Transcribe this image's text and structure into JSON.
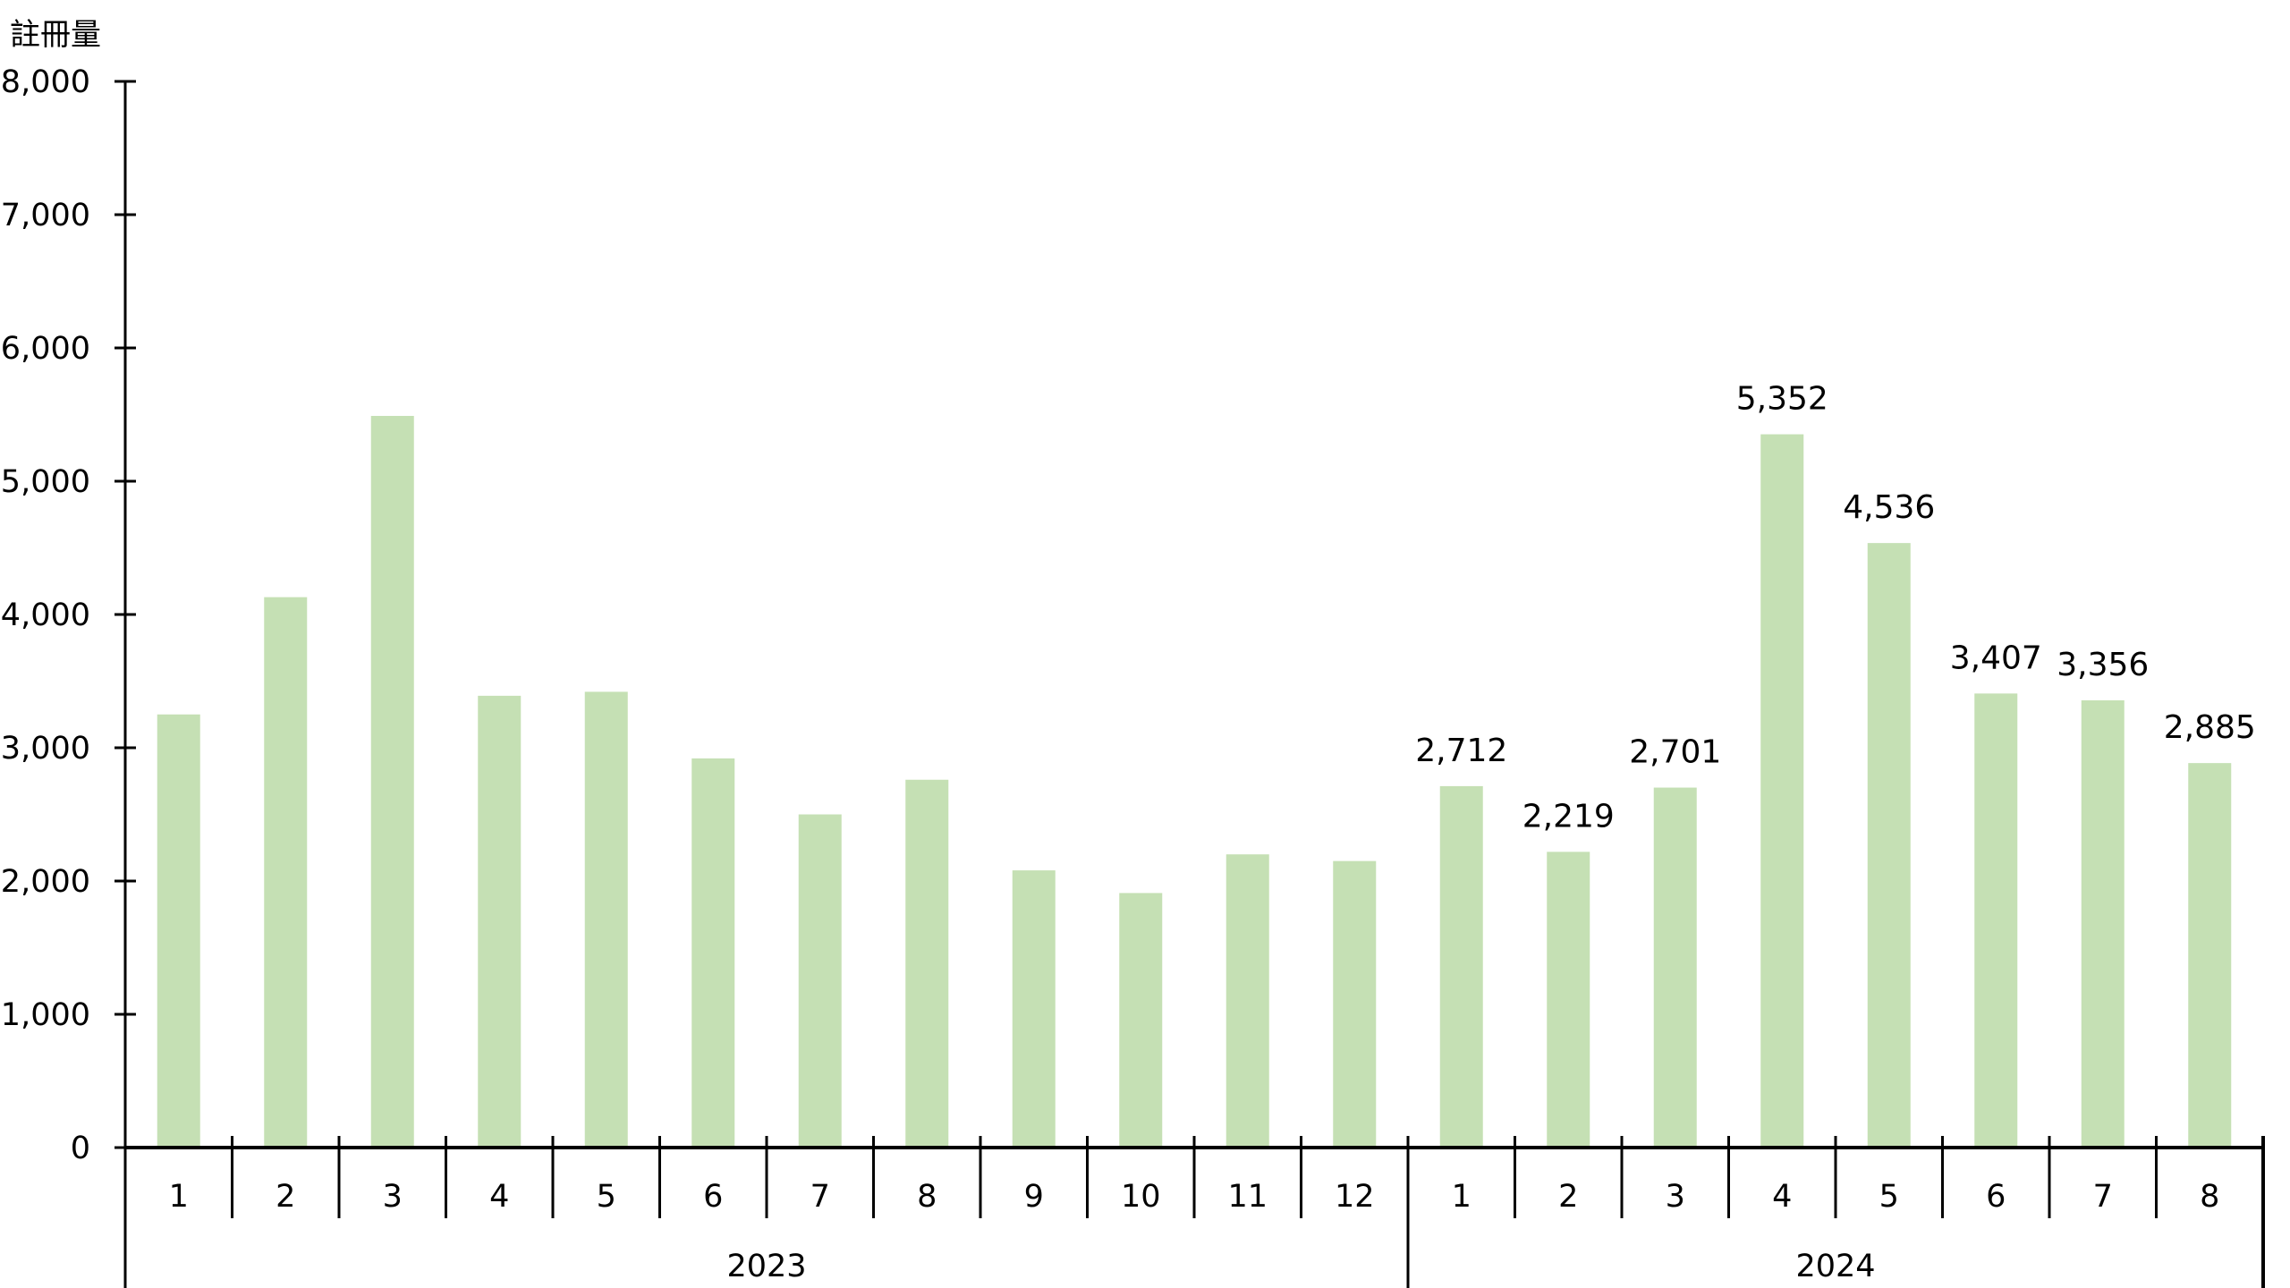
{
  "chart_data": {
    "type": "bar",
    "title": "",
    "ylabel": "註冊量",
    "xlabel": "",
    "ylim": [
      0,
      8000
    ],
    "yticks": [
      0,
      1000,
      2000,
      3000,
      4000,
      5000,
      6000,
      7000,
      8000
    ],
    "ytick_labels": [
      "0",
      "1,000",
      "2,000",
      "3,000",
      "4,000",
      "5,000",
      "6,000",
      "7,000",
      "8,000"
    ],
    "grid": false,
    "bar_color": "#c5e0b4",
    "groups": [
      {
        "label": "2023",
        "categories": [
          "1",
          "2",
          "3",
          "4",
          "5",
          "6",
          "7",
          "8",
          "9",
          "10",
          "11",
          "12"
        ],
        "values": [
          3250,
          4130,
          5490,
          3390,
          3420,
          2920,
          2500,
          2760,
          2080,
          1910,
          2200,
          2150
        ],
        "data_labels": [
          null,
          null,
          null,
          null,
          null,
          null,
          null,
          null,
          null,
          null,
          null,
          null
        ]
      },
      {
        "label": "2024",
        "categories": [
          "1",
          "2",
          "3",
          "4",
          "5",
          "6",
          "7",
          "8"
        ],
        "values": [
          2712,
          2219,
          2701,
          5352,
          4536,
          3407,
          3356,
          2885
        ],
        "data_labels": [
          "2,712",
          "2,219",
          "2,701",
          "5,352",
          "4,536",
          "3,407",
          "3,356",
          "2,885"
        ]
      }
    ]
  }
}
